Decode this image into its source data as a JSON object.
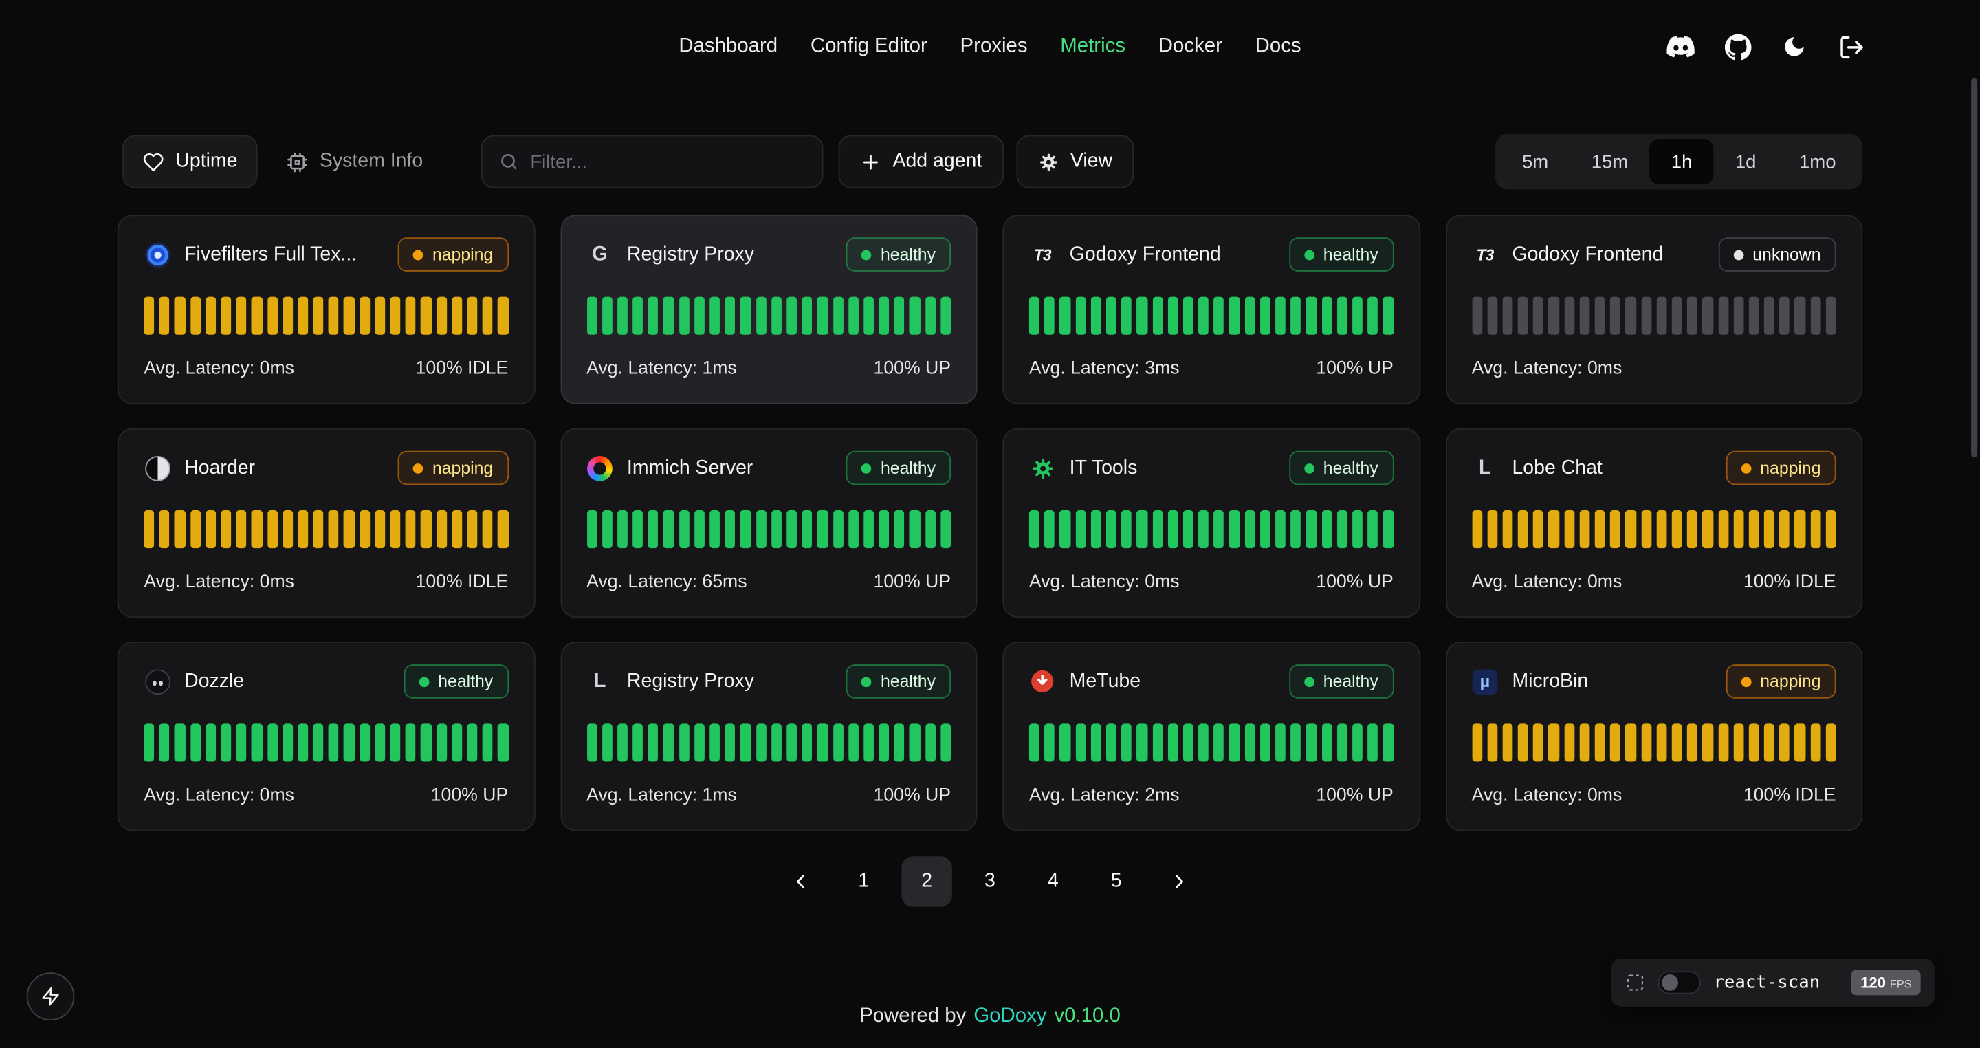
{
  "nav": {
    "items": [
      {
        "label": "Dashboard",
        "active": false
      },
      {
        "label": "Config Editor",
        "active": false
      },
      {
        "label": "Proxies",
        "active": false
      },
      {
        "label": "Metrics",
        "active": true
      },
      {
        "label": "Docker",
        "active": false
      },
      {
        "label": "Docs",
        "active": false
      }
    ],
    "icons": [
      "discord-icon",
      "github-icon",
      "moon-icon",
      "logout-icon"
    ]
  },
  "toolbar": {
    "uptime_label": "Uptime",
    "uptime_icon": "uptime-heart-icon",
    "system_info_label": "System Info",
    "system_info_icon": "cpu-icon",
    "filter_placeholder": "Filter...",
    "search_icon": "search-icon",
    "add_agent_label": "Add agent",
    "add_agent_icon": "plus-icon",
    "view_label": "View",
    "view_icon": "gear-icon",
    "time_ranges": [
      "5m",
      "15m",
      "1h",
      "1d",
      "1mo"
    ],
    "selected_range": "1h"
  },
  "bar_count": 24,
  "cards": [
    {
      "name": "Fivefilters Full Tex...",
      "icon": "fivefilters-icon",
      "status": "napping",
      "latency": "Avg. Latency: 0ms",
      "uptime": "100% IDLE",
      "bars": "idle",
      "highlighted": false
    },
    {
      "name": "Registry Proxy",
      "icon": "letter-g-icon",
      "status": "healthy",
      "latency": "Avg. Latency: 1ms",
      "uptime": "100% UP",
      "bars": "up",
      "highlighted": true
    },
    {
      "name": "Godoxy Frontend",
      "icon": "t3-icon",
      "status": "healthy",
      "latency": "Avg. Latency: 3ms",
      "uptime": "100% UP",
      "bars": "up",
      "highlighted": false
    },
    {
      "name": "Godoxy Frontend",
      "icon": "t3-icon",
      "status": "unknown",
      "latency": "Avg. Latency: 0ms",
      "uptime": "",
      "bars": "unknown",
      "highlighted": false
    },
    {
      "name": "Hoarder",
      "icon": "hoarder-icon",
      "status": "napping",
      "latency": "Avg. Latency: 0ms",
      "uptime": "100% IDLE",
      "bars": "idle",
      "highlighted": false
    },
    {
      "name": "Immich Server",
      "icon": "immich-icon",
      "status": "healthy",
      "latency": "Avg. Latency: 65ms",
      "uptime": "100% UP",
      "bars": "up",
      "highlighted": false
    },
    {
      "name": "IT Tools",
      "icon": "it-tools-icon",
      "status": "healthy",
      "latency": "Avg. Latency: 0ms",
      "uptime": "100% UP",
      "bars": "up",
      "highlighted": false
    },
    {
      "name": "Lobe Chat",
      "icon": "letter-l-icon",
      "status": "napping",
      "latency": "Avg. Latency: 0ms",
      "uptime": "100% IDLE",
      "bars": "idle",
      "highlighted": false
    },
    {
      "name": "Dozzle",
      "icon": "dozzle-icon",
      "status": "healthy",
      "latency": "Avg. Latency: 0ms",
      "uptime": "100% UP",
      "bars": "up",
      "highlighted": false
    },
    {
      "name": "Registry Proxy",
      "icon": "letter-l-icon",
      "status": "healthy",
      "latency": "Avg. Latency: 1ms",
      "uptime": "100% UP",
      "bars": "up",
      "highlighted": false
    },
    {
      "name": "MeTube",
      "icon": "metube-icon",
      "status": "healthy",
      "latency": "Avg. Latency: 2ms",
      "uptime": "100% UP",
      "bars": "up",
      "highlighted": false
    },
    {
      "name": "MicroBin",
      "icon": "microbin-icon",
      "status": "napping",
      "latency": "Avg. Latency: 0ms",
      "uptime": "100% IDLE",
      "bars": "idle",
      "highlighted": false
    }
  ],
  "pagination": {
    "prev_icon": "chevron-left-icon",
    "pages": [
      "1",
      "2",
      "3",
      "4",
      "5"
    ],
    "current": "2",
    "next_icon": "chevron-right-icon"
  },
  "react_scan": {
    "inspect_icon": "inspect-icon",
    "label": "react-scan",
    "fps": "120",
    "fps_unit": "FPS"
  },
  "footer": {
    "powered_by": "Powered by",
    "brand": "GoDoxy",
    "version": "v0.10.0"
  },
  "colors": {
    "accent_green": "#4ade80",
    "bar_up": "#22c55e",
    "bar_idle": "#e3ac0e",
    "bar_unknown": "#4a4a50",
    "status_healthy_dot": "#22c55e",
    "status_napping_dot": "#f59e0b",
    "brand_teal": "#2dd4bf"
  }
}
